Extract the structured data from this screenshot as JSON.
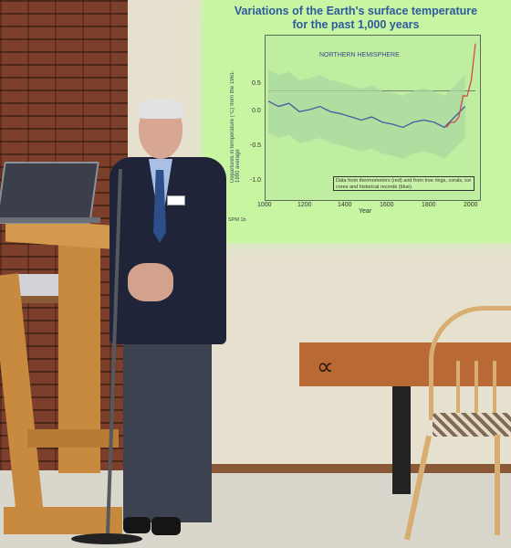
{
  "slide": {
    "title_line1": "Variations of the Earth's surface temperature",
    "title_line2": "for the past 1,000 years",
    "panel_label": "NORTHERN HEMISPHERE",
    "y_axis_label": "Departures in temperature (°C) from the 1961-1990 average",
    "y_ticks": [
      "0.5",
      "0.0",
      "-0.5",
      "-1.0"
    ],
    "x_ticks": [
      "1000",
      "1200",
      "1400",
      "1600",
      "1800",
      "2000"
    ],
    "x_axis_label": "Year",
    "legend_text": "Data from thermometers (red) and from tree rings, corals, ice cores and historical records (blue).",
    "source_tag": "SPM 1b"
  },
  "colors": {
    "screen": "#c7f5a1",
    "title": "#2e5aa0",
    "proxy_series": "#4a5aa0",
    "thermometer_series": "#d24a4a",
    "uncertainty_band": "#a9d6a0"
  },
  "chart_data": {
    "type": "line",
    "title": "Variations of the Earth's surface temperature for the past 1,000 years",
    "xlabel": "Year",
    "ylabel": "Departures in temperature (°C) from the 1961-1990 average",
    "xlim": [
      1000,
      2000
    ],
    "ylim": [
      -1.0,
      0.5
    ],
    "series": [
      {
        "x": [
          1000,
          1050,
          1100,
          1150,
          1200,
          1250,
          1300,
          1350,
          1400,
          1450,
          1500,
          1550,
          1600,
          1650,
          1700,
          1750,
          1800,
          1850,
          1900,
          1950
        ],
        "values": [
          -0.1,
          -0.15,
          -0.12,
          -0.2,
          -0.18,
          -0.15,
          -0.2,
          -0.22,
          -0.25,
          -0.28,
          -0.25,
          -0.3,
          -0.32,
          -0.35,
          -0.3,
          -0.28,
          -0.3,
          -0.35,
          -0.25,
          -0.15
        ]
      },
      {
        "x": [
          1860,
          1880,
          1900,
          1920,
          1940,
          1960,
          1980,
          2000
        ],
        "values": [
          -0.35,
          -0.3,
          -0.3,
          -0.25,
          -0.05,
          -0.05,
          0.1,
          0.45
        ]
      }
    ]
  }
}
